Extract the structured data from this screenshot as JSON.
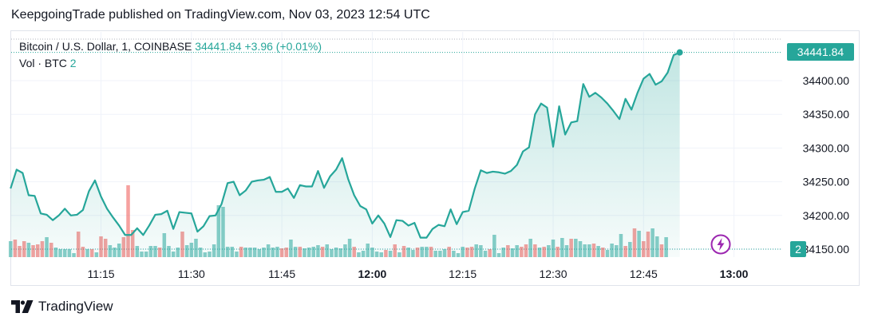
{
  "header": {
    "published_line": "KeepgoingTrade published on TradingView.com, Nov 03, 2023 12:54 UTC"
  },
  "legend": {
    "symbol": "Bitcoin / U.S. Dollar, 1, COINBASE",
    "last": "34441.84",
    "change": "+3.96 (+0.01%)",
    "vol_label": "Vol · BTC",
    "vol_value": "2"
  },
  "tags": {
    "price": "34441.84",
    "volume": "2"
  },
  "brand": {
    "name": "TradingView"
  },
  "colors": {
    "line": "#26a69a",
    "area_top": "#26a69a",
    "vol_up": "#26a69a",
    "vol_down": "#ef5350",
    "grid": "#f0f3fa",
    "text": "#131722"
  },
  "icons": {
    "logo": "tradingview-logo-icon",
    "bolt": "lightning-bolt-icon"
  },
  "chart_data": {
    "type": "area",
    "x_tick_labels": [
      "11:15",
      "11:30",
      "11:45",
      "12:00",
      "12:15",
      "12:30",
      "12:45",
      "13:00"
    ],
    "x_tick_minutes": [
      675,
      690,
      705,
      720,
      735,
      750,
      765,
      780
    ],
    "y_tick_labels": [
      "34150.00",
      "34200.00",
      "34250.00",
      "34300.00",
      "34350.00",
      "34400.00"
    ],
    "y_tick_values": [
      34150,
      34200,
      34250,
      34300,
      34350,
      34400
    ],
    "ylim": [
      34135,
      34470
    ],
    "xlim_minutes": [
      660.1,
      788
    ],
    "grid": true,
    "series": [
      {
        "x_minutes_start": 660,
        "x_step_minutes": 1,
        "values": [
          34240,
          34268,
          34263,
          34230,
          34229,
          34203,
          34201,
          34193,
          34200,
          34210,
          34200,
          34201,
          34208,
          34236,
          34252,
          34228,
          34210,
          34197,
          34185,
          34171,
          34171,
          34181,
          34171,
          34185,
          34201,
          34202,
          34207,
          34180,
          34205,
          34204,
          34203,
          34176,
          34184,
          34199,
          34200,
          34217,
          34248,
          34250,
          34230,
          34237,
          34250,
          34252,
          34253,
          34257,
          34235,
          34235,
          34240,
          34226,
          34245,
          34243,
          34243,
          34266,
          34241,
          34258,
          34268,
          34285,
          34254,
          34230,
          34214,
          34209,
          34188,
          34200,
          34188,
          34168,
          34193,
          34192,
          34185,
          34189,
          34167,
          34167,
          34180,
          34186,
          34184,
          34209,
          34187,
          34205,
          34207,
          34240,
          34267,
          34263,
          34265,
          34264,
          34262,
          34266,
          34275,
          34295,
          34301,
          34350,
          34366,
          34360,
          34302,
          34362,
          34320,
          34338,
          34340,
          34395,
          34376,
          34382,
          34375,
          34366,
          34355,
          34343,
          34373,
          34357,
          34382,
          34403,
          34410,
          34394,
          34399,
          34412,
          34438,
          34441.84
        ]
      }
    ],
    "volume": {
      "values": [
        2,
        2.2,
        1.4,
        2,
        1.8,
        1.5,
        1.6,
        2,
        2.5,
        1.8,
        1.2,
        1,
        1,
        1,
        0.5,
        3.2,
        1.3,
        1,
        1,
        0.6,
        2.6,
        2.3,
        1.5,
        1.2,
        1.7,
        2.5,
        9,
        3.4,
        1.4,
        0.7,
        0.7,
        1.4,
        1.4,
        1.2,
        3,
        1.4,
        0.7,
        1.2,
        3.2,
        1.5,
        1.8,
        2.3,
        1.2,
        0.6,
        0.7,
        1.6,
        6.5,
        6.3,
        1.3,
        1.3,
        0.7,
        1.3,
        1.2,
        1.2,
        1.2,
        1,
        1.2,
        1.6,
        1.2,
        1.3,
        1.1,
        1.2,
        2.2,
        1.3,
        1.3,
        1.1,
        1.2,
        1.3,
        1.5,
        1.3,
        1.6,
        1,
        1.2,
        1.1,
        1.6,
        2.3,
        1.3,
        0.6,
        0.8,
        1.7,
        1.2,
        0.7,
        0.6,
        0.9,
        0.8,
        1.6,
        0.6,
        1.4,
        1.2,
        0.9,
        1.2,
        1.3,
        1.3,
        1.3,
        0.8,
        0.8,
        1,
        1.3,
        0.8,
        0.5,
        1.3,
        1.2,
        1.3,
        1.6,
        1.5,
        0.8,
        1,
        2.8,
        0.5,
        1.2,
        1.5,
        1.1,
        1.5,
        1.3,
        1.6,
        2.3,
        1.6,
        1.2,
        1.3,
        1.5,
        2.2,
        1.3,
        2.4,
        1.5,
        2.3,
        2.3,
        2,
        1.6,
        1.6,
        1.7,
        1.4,
        1.2,
        0.9,
        1.7,
        1.5,
        2.9,
        1.4,
        1.9,
        3.6,
        3.3,
        2,
        3.2,
        3.6,
        2.6,
        1.6,
        2.5
      ],
      "up": [
        1,
        0,
        0,
        0,
        1,
        0,
        0,
        0,
        1,
        0,
        1,
        1,
        1,
        1,
        1,
        0,
        0,
        1,
        0,
        1,
        0,
        0,
        1,
        1,
        1,
        0,
        0,
        0,
        1,
        1,
        1,
        1,
        1,
        0,
        1,
        1,
        1,
        1,
        0,
        1,
        1,
        1,
        1,
        1,
        1,
        1,
        1,
        1,
        1,
        1,
        1,
        0,
        1,
        1,
        1,
        1,
        1,
        1,
        1,
        1,
        0,
        0,
        1,
        1,
        0,
        1,
        1,
        1,
        1,
        0,
        1,
        1,
        1,
        1,
        1,
        1,
        0,
        1,
        1,
        1,
        1,
        1,
        1,
        0,
        1,
        0,
        1,
        0,
        1,
        1,
        0,
        1,
        1,
        0,
        1,
        1,
        1,
        0,
        1,
        1,
        1,
        0,
        0,
        1,
        1,
        1,
        0,
        1,
        1,
        1,
        0,
        1,
        1,
        0,
        0,
        1,
        0,
        1,
        0,
        1,
        1,
        0,
        1,
        1,
        0,
        1,
        1,
        1,
        1,
        0,
        1,
        0,
        1,
        1,
        1,
        1,
        0,
        1,
        0,
        1,
        0,
        0,
        1,
        1,
        0,
        1
      ],
      "x_minutes_start": 660,
      "x_step_minutes": 0.75,
      "max": 11
    }
  }
}
